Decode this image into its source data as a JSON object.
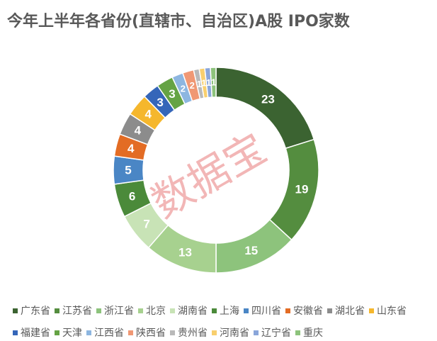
{
  "chart_data": {
    "type": "pie",
    "title": "今年上半年各省份(直辖市、自治区)A股 IPO家数",
    "categories": [
      "广东省",
      "江苏省",
      "浙江省",
      "北京",
      "湖南省",
      "上海",
      "四川省",
      "安徽省",
      "湖北省",
      "山东省",
      "福建省",
      "天津",
      "江西省",
      "陕西省",
      "贵州省",
      "河南省",
      "辽宁省",
      "重庆"
    ],
    "values": [
      23,
      19,
      15,
      13,
      7,
      6,
      5,
      4,
      4,
      4,
      3,
      3,
      2,
      2,
      1,
      1,
      1,
      1
    ],
    "colors": [
      "#3b6331",
      "#548d3f",
      "#8dc37c",
      "#a7d18f",
      "#c8e3b6",
      "#4b8a3a",
      "#4a86c5",
      "#e36c24",
      "#8c8c8c",
      "#f5b72d",
      "#3566b9",
      "#65a344",
      "#8db6e0",
      "#f09874",
      "#b9b9b9",
      "#f8cf6e",
      "#8aa6da",
      "#8dc37c"
    ],
    "label_color": "#ffffff",
    "legend_position": "bottom",
    "donut": true,
    "watermark": "数据宝"
  }
}
